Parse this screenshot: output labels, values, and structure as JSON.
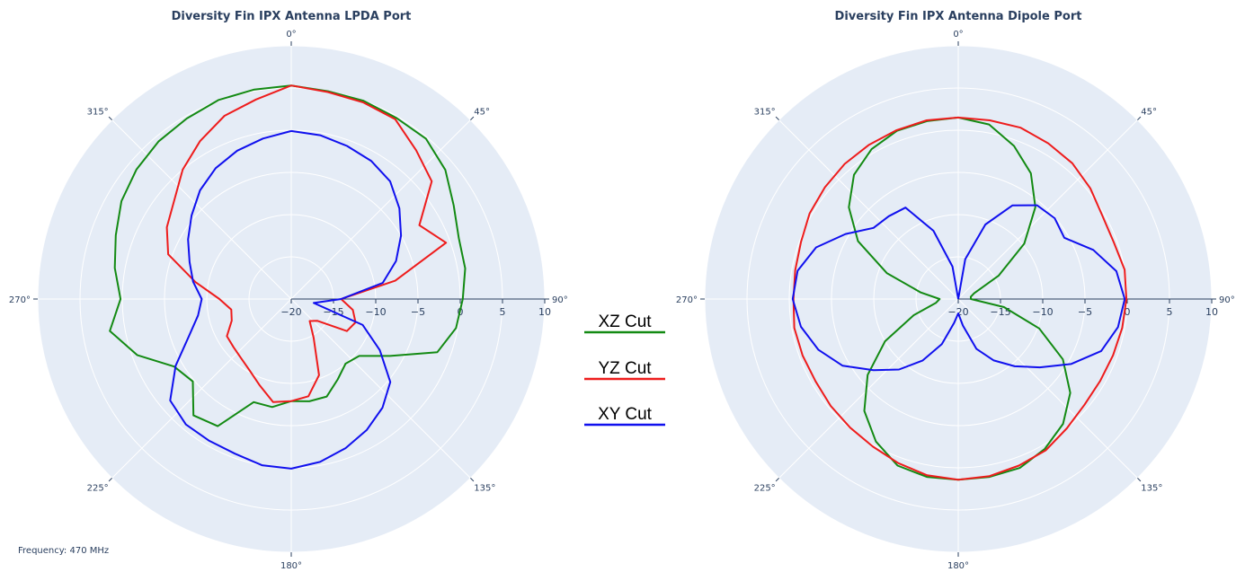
{
  "footer": {
    "frequency_note": "Frequency: 470 MHz"
  },
  "legend": [
    {
      "name": "XZ Cut",
      "color": "#138a13"
    },
    {
      "name": "YZ Cut",
      "color": "#ee1c1c"
    },
    {
      "name": "XY Cut",
      "color": "#1010ee"
    }
  ],
  "chart_data": [
    {
      "type": "polar-line",
      "title": "Diversity Fin IPX Antenna LPDA Port",
      "angular_direction": "clockwise",
      "angular_ticks": [
        "0°",
        "45°",
        "90°",
        "135°",
        "180°",
        "225°",
        "270°",
        "315°"
      ],
      "radial_range": [
        -20,
        10
      ],
      "radial_ticks": [
        "−20",
        "−15",
        "−10",
        "−5",
        "0",
        "5",
        "10"
      ],
      "radial_tick_values": [
        -20,
        -15,
        -10,
        -5,
        0,
        5,
        10
      ],
      "grid": true,
      "series": [
        {
          "name": "XZ Cut",
          "color": "#138a13",
          "theta": [
            0,
            10,
            20,
            30,
            40,
            50,
            60,
            70,
            80,
            90,
            100,
            110,
            120,
            130,
            140,
            150,
            160,
            170,
            180,
            190,
            200,
            210,
            220,
            230,
            240,
            250,
            260,
            270,
            280,
            290,
            300,
            310,
            320,
            330,
            340,
            350,
            360
          ],
          "r": [
            5.3,
            5.0,
            5.0,
            4.8,
            4.8,
            3.8,
            2.2,
            1.1,
            0.9,
            0.3,
            -0.2,
            -1.6,
            -6.5,
            -9.5,
            -10.0,
            -9.0,
            -7.7,
            -7.7,
            -7.9,
            -7.0,
            -7.0,
            -2.6,
            -2.0,
            -4.8,
            -4.0,
            -0.6,
            1.8,
            0.2,
            1.2,
            2.1,
            3.2,
            3.9,
            4.4,
            4.7,
            5.1,
            5.2,
            5.3
          ]
        },
        {
          "name": "YZ Cut",
          "color": "#ee1c1c",
          "theta": [
            0,
            10,
            20,
            30,
            40,
            50,
            60,
            70,
            80,
            90,
            100,
            110,
            120,
            130,
            140,
            150,
            160,
            170,
            180,
            190,
            200,
            210,
            220,
            230,
            240,
            250,
            260,
            270,
            280,
            290,
            300,
            310,
            320,
            330,
            340,
            350,
            360
          ],
          "r": [
            5.3,
            4.9,
            4.8,
            4.6,
            3.0,
            1.7,
            -2.5,
            -0.5,
            -7.5,
            -14.1,
            -12.6,
            -11.9,
            -12.4,
            -16.0,
            -16.6,
            -14.7,
            -10.4,
            -8.3,
            -7.9,
            -7.6,
            -9.1,
            -10.2,
            -10.8,
            -11.1,
            -11.2,
            -12.5,
            -12.8,
            -11.5,
            -8.5,
            -4.5,
            -3.0,
            -1.9,
            0.0,
            1.6,
            3.1,
            4.0,
            5.3
          ]
        },
        {
          "name": "XY Cut",
          "color": "#1010ee",
          "theta": [
            0,
            10,
            20,
            30,
            40,
            50,
            60,
            70,
            80,
            90,
            100,
            110,
            120,
            130,
            140,
            150,
            160,
            170,
            180,
            190,
            200,
            210,
            220,
            230,
            240,
            250,
            260,
            270,
            280,
            290,
            300,
            310,
            320,
            330,
            340,
            350,
            360
          ],
          "r": [
            -0.1,
            -0.3,
            -0.7,
            -1.1,
            -1.8,
            -3.3,
            -5.0,
            -6.8,
            -9.0,
            -14.1,
            -17.3,
            -11.0,
            -7.9,
            -4.7,
            -3.2,
            -2.1,
            -1.2,
            -0.4,
            0.1,
            0.0,
            -0.5,
            -0.6,
            -0.6,
            -1.3,
            -4.2,
            -7.1,
            -8.8,
            -9.4,
            -8.2,
            -7.2,
            -5.9,
            -4.6,
            -3.2,
            -2.1,
            -1.3,
            -0.7,
            -0.1
          ]
        }
      ]
    },
    {
      "type": "polar-line",
      "title": "Diversity Fin IPX Antenna Dipole Port",
      "angular_direction": "clockwise",
      "angular_ticks": [
        "0°",
        "45°",
        "90°",
        "135°",
        "180°",
        "225°",
        "270°",
        "315°"
      ],
      "radial_range": [
        -20,
        10
      ],
      "radial_ticks": [
        "−20",
        "−15",
        "−10",
        "−5",
        "0",
        "5",
        "10"
      ],
      "radial_tick_values": [
        -20,
        -15,
        -10,
        -5,
        0,
        5,
        10
      ],
      "grid": true,
      "series": [
        {
          "name": "XZ Cut",
          "color": "#138a13",
          "theta": [
            0,
            10,
            20,
            30,
            40,
            50,
            60,
            70,
            80,
            90,
            100,
            110,
            120,
            130,
            140,
            150,
            160,
            170,
            180,
            190,
            200,
            210,
            220,
            230,
            240,
            250,
            260,
            270,
            280,
            290,
            300,
            310,
            320,
            330,
            340,
            350,
            360
          ],
          "r": [
            1.5,
            1.0,
            -0.7,
            -2.8,
            -5.8,
            -9.8,
            -14.5,
            -18.0,
            -18.5,
            -18.5,
            -14.5,
            -9.8,
            -5.7,
            -2.7,
            -0.7,
            0.5,
            1.3,
            1.4,
            1.4,
            1.4,
            1.0,
            -0.5,
            -2.7,
            -6.0,
            -10.0,
            -14.4,
            -17.3,
            -17.8,
            -15.5,
            -11.0,
            -6.3,
            -3.1,
            -0.8,
            0.5,
            1.2,
            1.4,
            1.5
          ]
        },
        {
          "name": "YZ Cut",
          "color": "#ee1c1c",
          "theta": [
            0,
            10,
            20,
            30,
            40,
            50,
            60,
            70,
            80,
            90,
            100,
            110,
            120,
            130,
            140,
            150,
            160,
            170,
            180,
            190,
            200,
            210,
            220,
            230,
            240,
            250,
            260,
            270,
            280,
            290,
            300,
            310,
            320,
            330,
            340,
            350,
            360
          ],
          "r": [
            1.5,
            1.5,
            1.6,
            1.3,
            1.0,
            0.4,
            -0.3,
            -0.4,
            0.0,
            -0.1,
            -0.3,
            -0.5,
            -0.6,
            -0.5,
            0.0,
            0.7,
            1.0,
            1.3,
            1.4,
            1.2,
            0.7,
            0.2,
            -0.1,
            -0.3,
            -0.5,
            -0.4,
            -0.3,
            -0.5,
            -0.4,
            -0.2,
            0.3,
            0.6,
            0.9,
            1.1,
            1.3,
            1.5,
            1.5
          ]
        },
        {
          "name": "XY Cut",
          "color": "#1010ee",
          "theta": [
            0,
            10,
            20,
            30,
            40,
            50,
            60,
            70,
            80,
            90,
            100,
            110,
            120,
            130,
            140,
            150,
            160,
            170,
            180,
            190,
            200,
            210,
            220,
            230,
            240,
            250,
            260,
            270,
            280,
            290,
            300,
            310,
            320,
            330,
            340,
            350,
            360
          ],
          "r": [
            -20.0,
            -15.2,
            -10.6,
            -7.2,
            -5.5,
            -5.1,
            -5.5,
            -3.0,
            -1.0,
            -0.3,
            -0.8,
            -2.0,
            -4.6,
            -7.4,
            -9.6,
            -11.6,
            -13.7,
            -16.8,
            -18.3,
            -17.1,
            -14.3,
            -11.6,
            -9.1,
            -6.9,
            -4.2,
            -2.4,
            -1.1,
            -0.4,
            -0.7,
            -2.1,
            -4.6,
            -6.9,
            -7.2,
            -7.5,
            -11.4,
            -16.1,
            -20.0
          ]
        }
      ]
    }
  ]
}
